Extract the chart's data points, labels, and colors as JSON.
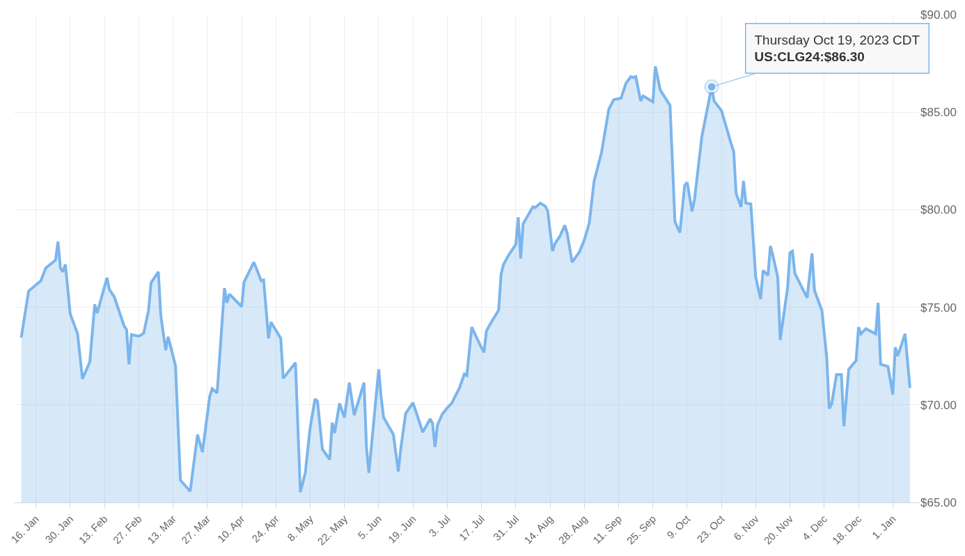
{
  "chart_data": {
    "type": "area",
    "x": [
      "2023-01-10",
      "2023-01-12",
      "2023-01-13",
      "2023-01-18",
      "2023-01-20",
      "2023-01-24",
      "2023-01-25",
      "2023-01-26",
      "2023-01-27",
      "2023-01-28",
      "2023-01-30",
      "2023-02-02",
      "2023-02-04",
      "2023-02-07",
      "2023-02-09",
      "2023-02-10",
      "2023-02-14",
      "2023-02-15",
      "2023-02-17",
      "2023-02-21",
      "2023-02-22",
      "2023-02-23",
      "2023-02-24",
      "2023-02-27",
      "2023-03-01",
      "2023-03-03",
      "2023-03-04",
      "2023-03-07",
      "2023-03-08",
      "2023-03-10",
      "2023-03-11",
      "2023-03-14",
      "2023-03-16",
      "2023-03-20",
      "2023-03-23",
      "2023-03-25",
      "2023-03-28",
      "2023-03-29",
      "2023-03-31",
      "2023-04-03",
      "2023-04-04",
      "2023-04-05",
      "2023-04-10",
      "2023-04-11",
      "2023-04-15",
      "2023-04-18",
      "2023-04-19",
      "2023-04-21",
      "2023-04-22",
      "2023-04-26",
      "2023-04-27",
      "2023-05-02",
      "2023-05-04",
      "2023-05-06",
      "2023-05-08",
      "2023-05-10",
      "2023-05-11",
      "2023-05-13",
      "2023-05-16",
      "2023-05-17",
      "2023-05-18",
      "2023-05-20",
      "2023-05-22",
      "2023-05-24",
      "2023-05-26",
      "2023-05-30",
      "2023-05-31",
      "2023-06-01",
      "2023-06-05",
      "2023-06-06",
      "2023-06-07",
      "2023-06-11",
      "2023-06-13",
      "2023-06-14",
      "2023-06-16",
      "2023-06-19",
      "2023-06-20",
      "2023-06-23",
      "2023-06-26",
      "2023-06-27",
      "2023-06-28",
      "2023-06-29",
      "2023-07-01",
      "2023-07-03",
      "2023-07-05",
      "2023-07-06",
      "2023-07-08",
      "2023-07-10",
      "2023-07-11",
      "2023-07-13",
      "2023-07-16",
      "2023-07-18",
      "2023-07-19",
      "2023-07-21",
      "2023-07-24",
      "2023-07-25",
      "2023-07-26",
      "2023-07-28",
      "2023-07-31",
      "2023-08-01",
      "2023-08-02",
      "2023-08-03",
      "2023-08-07",
      "2023-08-08",
      "2023-08-10",
      "2023-08-12",
      "2023-08-13",
      "2023-08-15",
      "2023-08-16",
      "2023-08-18",
      "2023-08-20",
      "2023-08-21",
      "2023-08-23",
      "2023-08-26",
      "2023-08-28",
      "2023-08-30",
      "2023-09-01",
      "2023-09-04",
      "2023-09-07",
      "2023-09-09",
      "2023-09-12",
      "2023-09-14",
      "2023-09-16",
      "2023-09-17",
      "2023-09-18",
      "2023-09-20",
      "2023-09-21",
      "2023-09-25",
      "2023-09-26",
      "2023-09-28",
      "2023-10-02",
      "2023-10-04",
      "2023-10-06",
      "2023-10-08",
      "2023-10-09",
      "2023-10-11",
      "2023-10-12",
      "2023-10-15",
      "2023-10-19",
      "2023-10-20",
      "2023-10-23",
      "2023-10-27",
      "2023-10-28",
      "2023-10-29",
      "2023-10-31",
      "2023-11-01",
      "2023-11-02",
      "2023-11-04",
      "2023-11-06",
      "2023-11-08",
      "2023-11-09",
      "2023-11-11",
      "2023-11-12",
      "2023-11-13",
      "2023-11-15",
      "2023-11-16",
      "2023-11-19",
      "2023-11-20",
      "2023-11-21",
      "2023-11-22",
      "2023-11-27",
      "2023-11-29",
      "2023-11-30",
      "2023-12-03",
      "2023-12-05",
      "2023-12-06",
      "2023-12-07",
      "2023-12-09",
      "2023-12-11",
      "2023-12-12",
      "2023-12-14",
      "2023-12-17",
      "2023-12-18",
      "2023-12-19",
      "2023-12-21",
      "2023-12-25",
      "2023-12-26",
      "2023-12-27",
      "2023-12-30",
      "2024-01-01",
      "2024-01-02",
      "2024-01-03",
      "2024-01-06",
      "2024-01-08"
    ],
    "series": [
      {
        "color": "#7cb5ec",
        "values": [
          73.45,
          75.04,
          75.83,
          76.36,
          77.01,
          77.42,
          78.37,
          77.01,
          76.82,
          77.2,
          74.66,
          73.64,
          71.33,
          72.2,
          75.15,
          74.7,
          76.51,
          75.91,
          75.53,
          74.05,
          73.86,
          72.08,
          73.6,
          73.52,
          73.67,
          74.85,
          76.25,
          76.82,
          74.58,
          72.8,
          73.49,
          72.01,
          66.14,
          65.57,
          68.48,
          67.58,
          70.45,
          70.83,
          70.61,
          75.98,
          75.23,
          75.68,
          75.04,
          76.29,
          77.31,
          76.36,
          76.4,
          73.41,
          74.24,
          73.41,
          71.36,
          72.16,
          65.53,
          66.51,
          68.83,
          70.3,
          70.19,
          67.73,
          67.2,
          69.09,
          68.56,
          70.08,
          69.36,
          71.14,
          69.47,
          71.14,
          67.84,
          66.51,
          71.82,
          70.38,
          69.36,
          68.48,
          66.59,
          67.73,
          69.55,
          70.11,
          69.74,
          68.6,
          69.28,
          69.05,
          67.84,
          68.97,
          69.53,
          69.85,
          70.11,
          70.38,
          70.87,
          71.59,
          71.51,
          73.98,
          73.18,
          72.69,
          73.79,
          74.24,
          74.85,
          76.71,
          77.2,
          77.66,
          78.22,
          79.62,
          77.5,
          79.28,
          80.15,
          80.11,
          80.34,
          80.19,
          79.96,
          77.88,
          78.26,
          78.64,
          79.2,
          78.79,
          77.31,
          77.84,
          78.45,
          79.32,
          81.48,
          82.92,
          85.15,
          85.64,
          85.72,
          86.48,
          86.82,
          86.78,
          86.82,
          85.57,
          85.83,
          85.53,
          87.35,
          86.14,
          85.34,
          79.39,
          78.83,
          81.25,
          81.4,
          79.92,
          80.53,
          83.75,
          86.3,
          85.57,
          85.08,
          83.37,
          82.99,
          80.83,
          80.15,
          81.48,
          80.34,
          80.3,
          76.55,
          75.42,
          76.89,
          76.63,
          78.14,
          77.65,
          76.55,
          73.33,
          75.98,
          77.8,
          77.88,
          76.74,
          75.49,
          77.76,
          75.87,
          74.85,
          72.46,
          69.81,
          70.03,
          71.55,
          71.55,
          68.9,
          71.82,
          72.27,
          73.98,
          73.64,
          73.9,
          73.64,
          75.23,
          72.08,
          71.97,
          70.53,
          72.95,
          72.5,
          73.64,
          70.87
        ]
      }
    ],
    "xlim": [
      "2023-01-07",
      "2024-01-12"
    ],
    "xticks": [
      {
        "value": "2023-01-16",
        "label": "16. Jan"
      },
      {
        "value": "2023-01-30",
        "label": "30. Jan"
      },
      {
        "value": "2023-02-13",
        "label": "13. Feb"
      },
      {
        "value": "2023-02-27",
        "label": "27. Feb"
      },
      {
        "value": "2023-03-13",
        "label": "13. Mar"
      },
      {
        "value": "2023-03-27",
        "label": "27. Mar"
      },
      {
        "value": "2023-04-10",
        "label": "10. Apr"
      },
      {
        "value": "2023-04-24",
        "label": "24. Apr"
      },
      {
        "value": "2023-05-08",
        "label": "8. May"
      },
      {
        "value": "2023-05-22",
        "label": "22. May"
      },
      {
        "value": "2023-06-05",
        "label": "5. Jun"
      },
      {
        "value": "2023-06-19",
        "label": "19. Jun"
      },
      {
        "value": "2023-07-03",
        "label": "3. Jul"
      },
      {
        "value": "2023-07-17",
        "label": "17. Jul"
      },
      {
        "value": "2023-07-31",
        "label": "31. Jul"
      },
      {
        "value": "2023-08-14",
        "label": "14. Aug"
      },
      {
        "value": "2023-08-28",
        "label": "28. Aug"
      },
      {
        "value": "2023-09-11",
        "label": "11. Sep"
      },
      {
        "value": "2023-09-25",
        "label": "25. Sep"
      },
      {
        "value": "2023-10-09",
        "label": "9. Oct"
      },
      {
        "value": "2023-10-23",
        "label": "23. Oct"
      },
      {
        "value": "2023-11-06",
        "label": "6. Nov"
      },
      {
        "value": "2023-11-20",
        "label": "20. Nov"
      },
      {
        "value": "2023-12-04",
        "label": "4. Dec"
      },
      {
        "value": "2023-12-18",
        "label": "18. Dec"
      },
      {
        "value": "2024-01-01",
        "label": "1. Jan"
      }
    ],
    "ylim": [
      65,
      90
    ],
    "yticks": [
      {
        "value": 65,
        "label": "$65.00"
      },
      {
        "value": 70,
        "label": "$70.00"
      },
      {
        "value": 75,
        "label": "$75.00"
      },
      {
        "value": 80,
        "label": "$80.00"
      },
      {
        "value": 85,
        "label": "$85.00"
      },
      {
        "value": 90,
        "label": "$90.00"
      }
    ],
    "grid": true,
    "marker": "none",
    "annotations": [
      {
        "text": "Thursday Oct 19, 2023 CDT\nUS:CLG24:$86.30",
        "x": "2023-10-19",
        "y": 86.3
      }
    ]
  }
}
